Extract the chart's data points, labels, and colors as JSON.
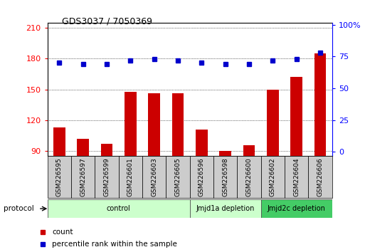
{
  "title": "GDS3037 / 7050369",
  "samples": [
    "GSM226595",
    "GSM226597",
    "GSM226599",
    "GSM226601",
    "GSM226603",
    "GSM226605",
    "GSM226596",
    "GSM226598",
    "GSM226600",
    "GSM226602",
    "GSM226604",
    "GSM226606"
  ],
  "counts": [
    113,
    102,
    97,
    148,
    146,
    146,
    111,
    90,
    96,
    150,
    162,
    185
  ],
  "percentile_ranks": [
    70,
    69,
    69,
    72,
    73,
    72,
    70,
    69,
    69,
    72,
    73,
    78
  ],
  "groups": [
    {
      "label": "control",
      "start": 0,
      "end": 6,
      "light": true
    },
    {
      "label": "Jmjd1a depletion",
      "start": 6,
      "end": 9,
      "light": true
    },
    {
      "label": "Jmjd2c depletion",
      "start": 9,
      "end": 12,
      "light": false
    }
  ],
  "ylim_left": [
    85,
    215
  ],
  "ylim_right": [
    -3.5,
    101.5
  ],
  "yticks_left": [
    90,
    120,
    150,
    180,
    210
  ],
  "yticks_right": [
    0,
    25,
    50,
    75,
    100
  ],
  "bar_color": "#cc0000",
  "dot_color": "#0000cc",
  "bar_width": 0.5,
  "grid_color": "#000000",
  "background_color": "#ffffff",
  "light_green": "#ccffcc",
  "dark_green": "#44cc66",
  "cell_color": "#cccccc",
  "legend_count_label": "count",
  "legend_pct_label": "percentile rank within the sample"
}
